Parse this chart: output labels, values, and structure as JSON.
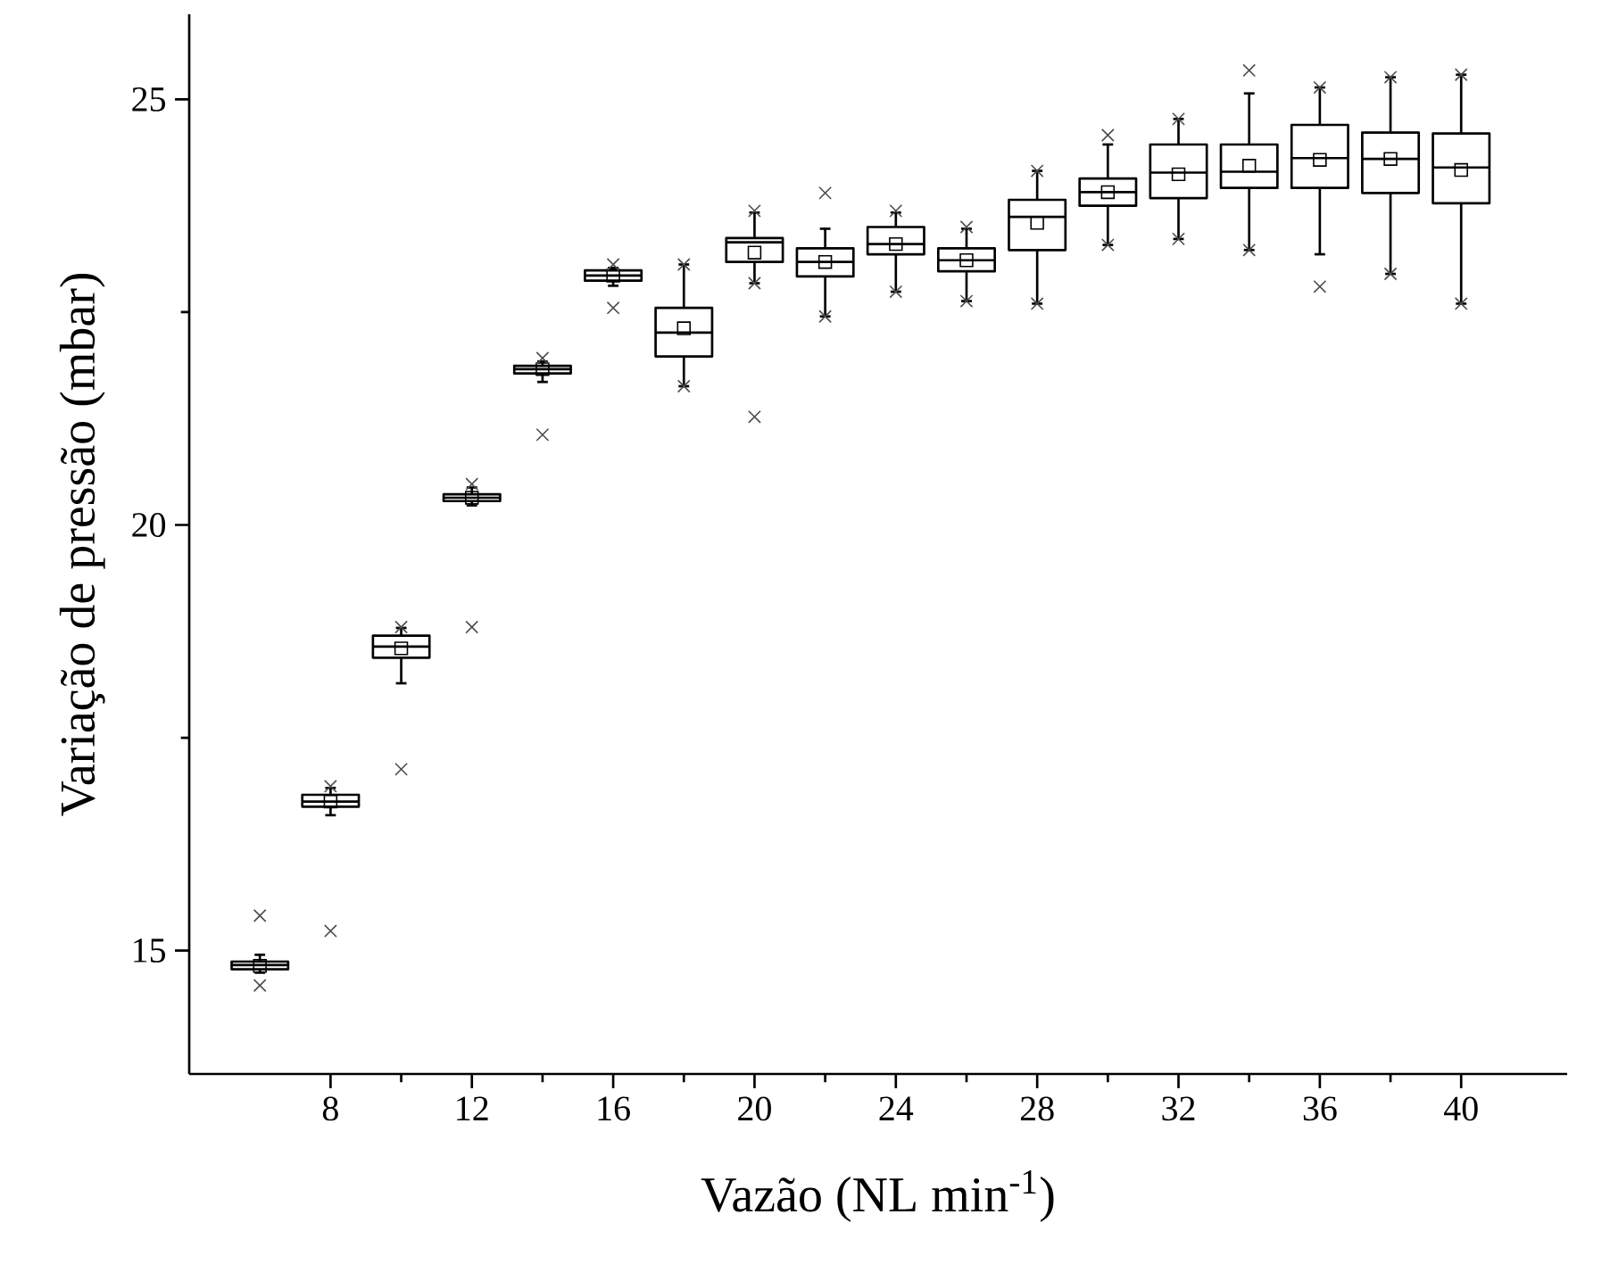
{
  "chart_data": {
    "type": "box",
    "xlabel": "Vazão (NL min$^{-1}$)",
    "ylabel": "Variação de pressão (mbar)",
    "x": [
      6,
      8,
      10,
      12,
      14,
      16,
      18,
      20,
      22,
      24,
      26,
      28,
      30,
      32,
      34,
      36,
      38,
      40
    ],
    "boxes": [
      {
        "low": 14.74,
        "q1": 14.78,
        "median": 14.83,
        "q3": 14.87,
        "high": 14.95,
        "mean": 14.82,
        "outliers": [
          15.41,
          14.59
        ]
      },
      {
        "low": 16.59,
        "q1": 16.69,
        "median": 16.75,
        "q3": 16.83,
        "high": 16.91,
        "mean": 16.75,
        "outliers": [
          16.93,
          15.23
        ]
      },
      {
        "low": 18.14,
        "q1": 18.44,
        "median": 18.57,
        "q3": 18.7,
        "high": 18.79,
        "mean": 18.55,
        "outliers": [
          18.8,
          17.13
        ]
      },
      {
        "low": 20.23,
        "q1": 20.28,
        "median": 20.32,
        "q3": 20.36,
        "high": 20.44,
        "mean": 20.32,
        "outliers": [
          20.48,
          18.8
        ]
      },
      {
        "low": 21.68,
        "q1": 21.78,
        "median": 21.83,
        "q3": 21.87,
        "high": 21.92,
        "mean": 21.83,
        "outliers": [
          21.96,
          21.06
        ]
      },
      {
        "low": 22.81,
        "q1": 22.87,
        "median": 22.93,
        "q3": 22.99,
        "high": 23.02,
        "mean": 22.93,
        "outliers": [
          23.06,
          22.55
        ]
      },
      {
        "low": 21.63,
        "q1": 21.98,
        "median": 22.26,
        "q3": 22.55,
        "high": 23.06,
        "mean": 22.31,
        "outliers": [
          23.06,
          21.63
        ]
      },
      {
        "low": 22.84,
        "q1": 23.09,
        "median": 23.32,
        "q3": 23.37,
        "high": 23.67,
        "mean": 23.2,
        "outliers": [
          23.69,
          22.84,
          21.27
        ]
      },
      {
        "low": 22.45,
        "q1": 22.92,
        "median": 23.09,
        "q3": 23.25,
        "high": 23.48,
        "mean": 23.09,
        "outliers": [
          23.9,
          22.45
        ]
      },
      {
        "low": 22.74,
        "q1": 23.18,
        "median": 23.3,
        "q3": 23.5,
        "high": 23.67,
        "mean": 23.3,
        "outliers": [
          23.69,
          22.74
        ]
      },
      {
        "low": 22.63,
        "q1": 22.98,
        "median": 23.11,
        "q3": 23.25,
        "high": 23.48,
        "mean": 23.11,
        "outliers": [
          23.5,
          22.63
        ]
      },
      {
        "low": 22.6,
        "q1": 23.23,
        "median": 23.62,
        "q3": 23.82,
        "high": 24.16,
        "mean": 23.55,
        "outliers": [
          24.16,
          22.6
        ]
      },
      {
        "low": 23.29,
        "q1": 23.75,
        "median": 23.91,
        "q3": 24.07,
        "high": 24.47,
        "mean": 23.91,
        "outliers": [
          24.58,
          23.29
        ]
      },
      {
        "low": 23.36,
        "q1": 23.84,
        "median": 24.14,
        "q3": 24.47,
        "high": 24.77,
        "mean": 24.12,
        "outliers": [
          24.77,
          23.36
        ]
      },
      {
        "low": 23.23,
        "q1": 23.96,
        "median": 24.15,
        "q3": 24.47,
        "high": 25.07,
        "mean": 24.22,
        "outliers": [
          25.34,
          23.23
        ]
      },
      {
        "low": 23.18,
        "q1": 23.96,
        "median": 24.31,
        "q3": 24.7,
        "high": 25.14,
        "mean": 24.29,
        "outliers": [
          25.14,
          22.8
        ]
      },
      {
        "low": 22.95,
        "q1": 23.9,
        "median": 24.3,
        "q3": 24.61,
        "high": 25.26,
        "mean": 24.3,
        "outliers": [
          25.26,
          22.95
        ]
      },
      {
        "low": 22.6,
        "q1": 23.78,
        "median": 24.2,
        "q3": 24.6,
        "high": 25.29,
        "mean": 24.17,
        "outliers": [
          25.29,
          22.6
        ]
      }
    ],
    "xlim": [
      4,
      43
    ],
    "ylim": [
      13.55,
      26
    ],
    "xticks": [
      8,
      12,
      16,
      20,
      24,
      28,
      32,
      36,
      40
    ],
    "yticks": [
      15,
      20,
      25
    ]
  }
}
